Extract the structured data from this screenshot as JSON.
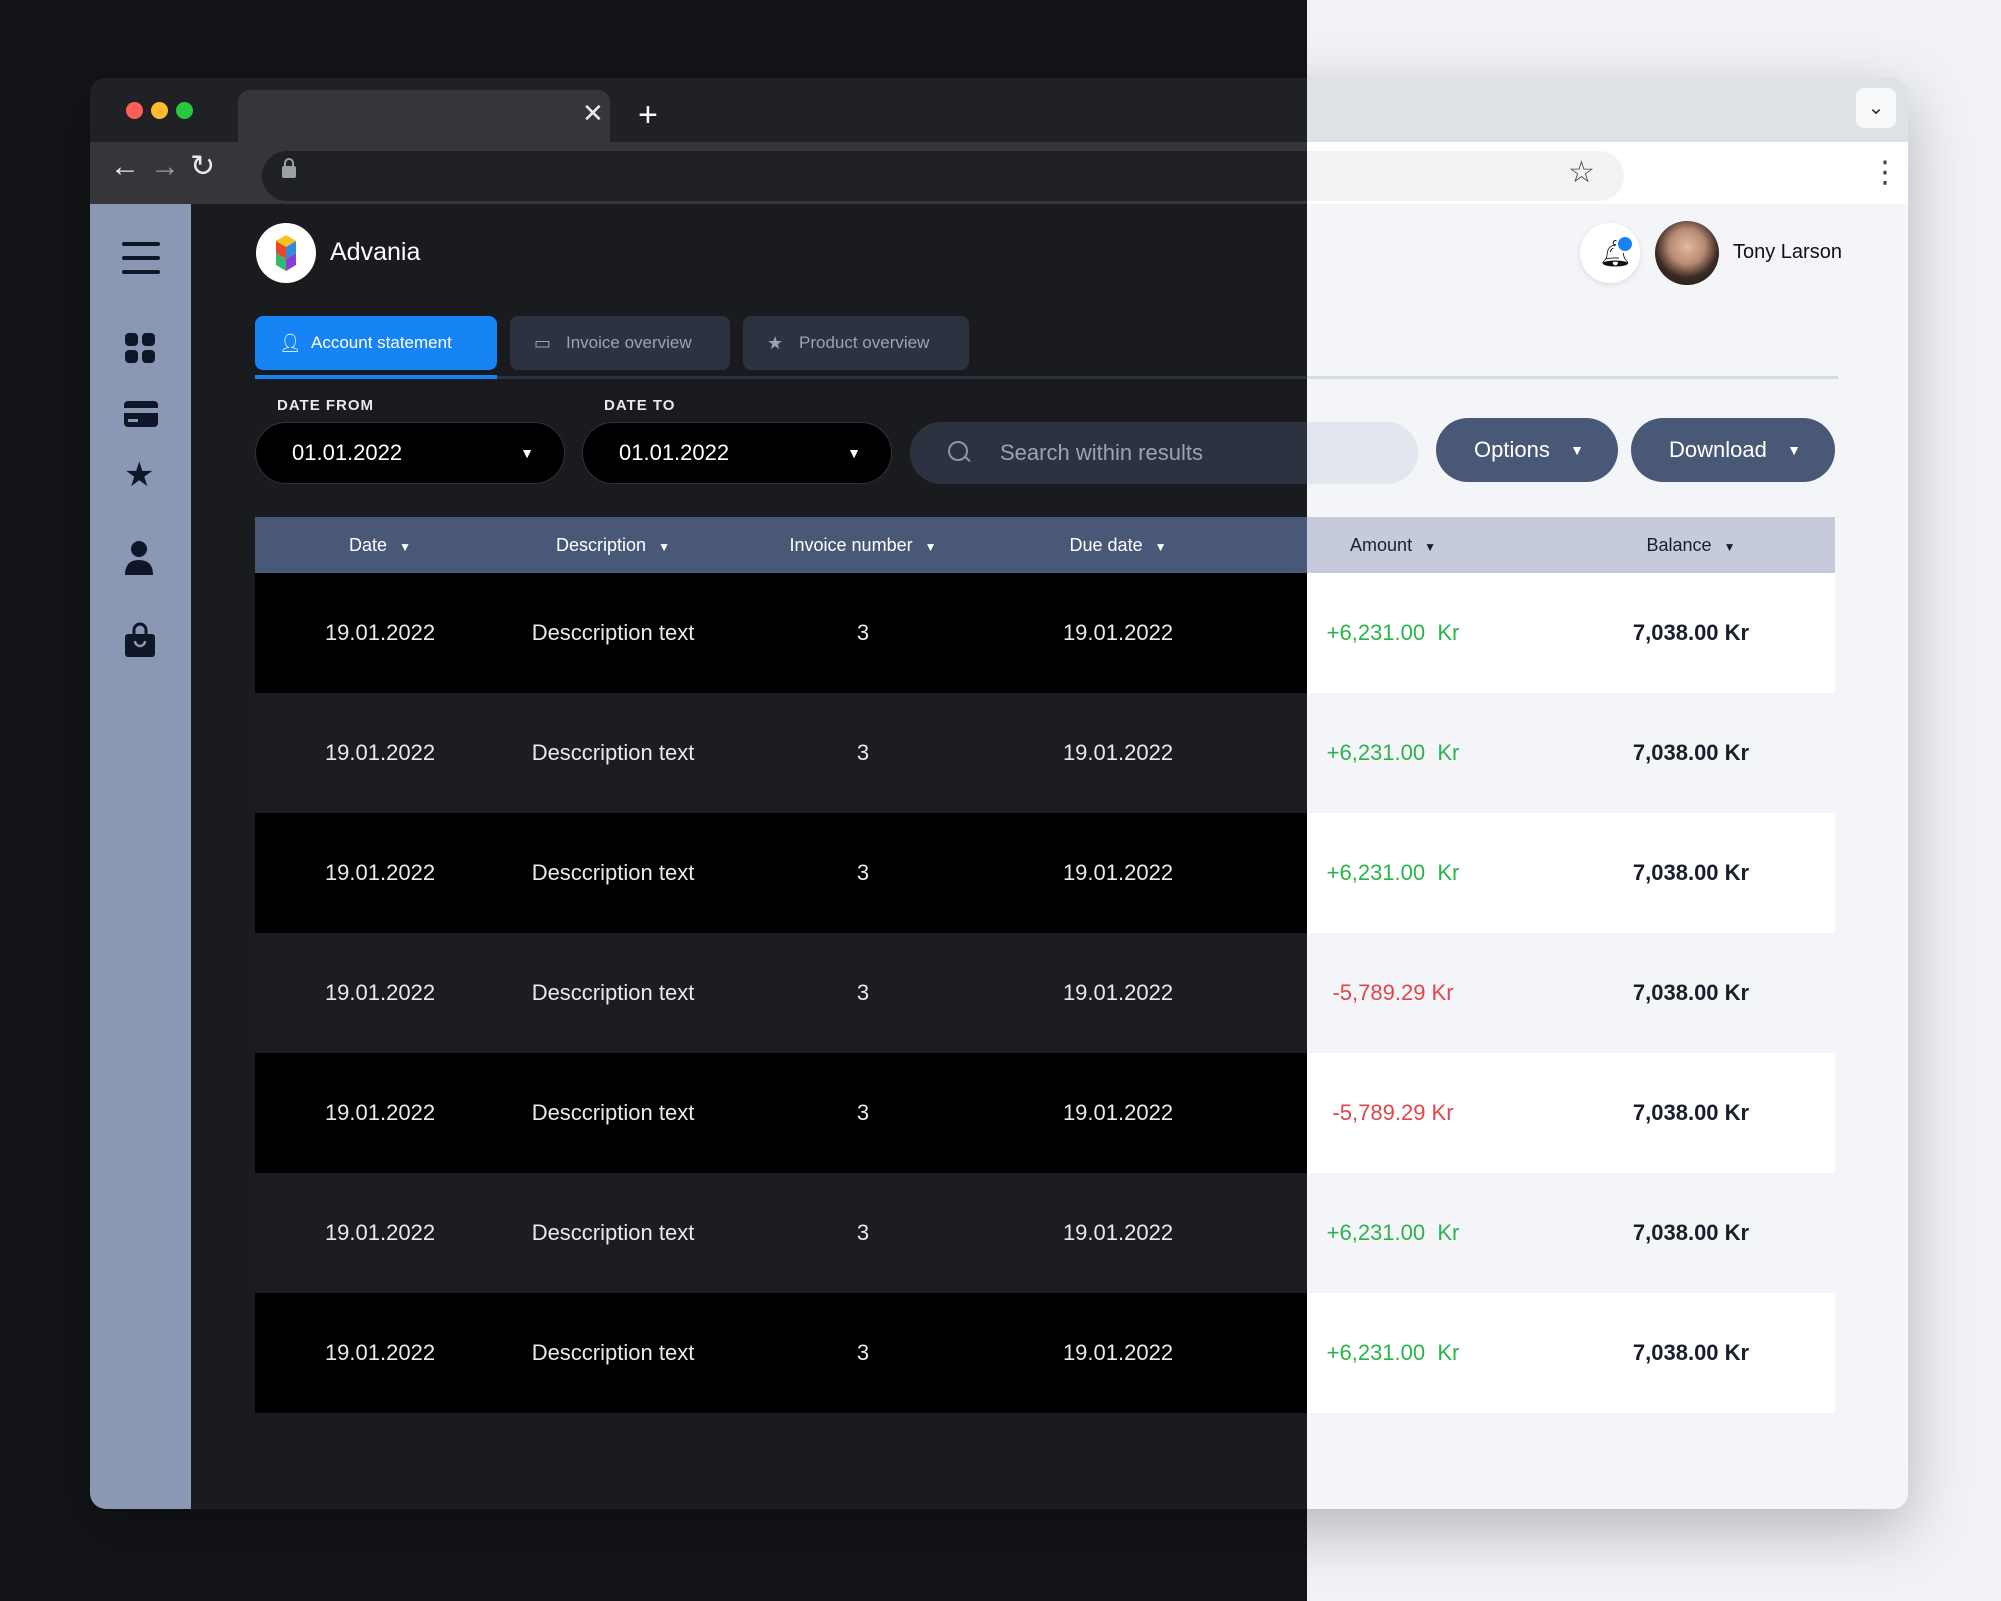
{
  "brand": {
    "name": "Advania"
  },
  "user": {
    "name": "Tony Larson"
  },
  "tabs": [
    {
      "label": "Account statement",
      "icon": "user-icon"
    },
    {
      "label": "Invoice overview",
      "icon": "card-icon"
    },
    {
      "label": "Product overview",
      "icon": "star-icon"
    }
  ],
  "filters": {
    "date_from_label": "DATE FROM",
    "date_from_value": "01.01.2022",
    "date_to_label": "DATE TO",
    "date_to_value": "01.01.2022",
    "search_placeholder": "Search within results",
    "options_label": "Options",
    "download_label": "Download"
  },
  "table": {
    "columns": [
      "Date",
      "Description",
      "Invoice number",
      "Due date",
      "Amount",
      "Balance"
    ],
    "rows": [
      {
        "date": "19.01.2022",
        "description": "Desccription text",
        "invoice": "3",
        "due": "19.01.2022",
        "amount": "+6,231.00  Kr",
        "sign": "pos",
        "balance": "7,038.00 Kr"
      },
      {
        "date": "19.01.2022",
        "description": "Desccription text",
        "invoice": "3",
        "due": "19.01.2022",
        "amount": "+6,231.00  Kr",
        "sign": "pos",
        "balance": "7,038.00 Kr"
      },
      {
        "date": "19.01.2022",
        "description": "Desccription text",
        "invoice": "3",
        "due": "19.01.2022",
        "amount": "+6,231.00  Kr",
        "sign": "pos",
        "balance": "7,038.00 Kr"
      },
      {
        "date": "19.01.2022",
        "description": "Desccription text",
        "invoice": "3",
        "due": "19.01.2022",
        "amount": "-5,789.29 Kr",
        "sign": "neg",
        "balance": "7,038.00 Kr"
      },
      {
        "date": "19.01.2022",
        "description": "Desccription text",
        "invoice": "3",
        "due": "19.01.2022",
        "amount": "-5,789.29 Kr",
        "sign": "neg",
        "balance": "7,038.00 Kr"
      },
      {
        "date": "19.01.2022",
        "description": "Desccription text",
        "invoice": "3",
        "due": "19.01.2022",
        "amount": "+6,231.00  Kr",
        "sign": "pos",
        "balance": "7,038.00 Kr"
      },
      {
        "date": "19.01.2022",
        "description": "Desccription text",
        "invoice": "3",
        "due": "19.01.2022",
        "amount": "+6,231.00  Kr",
        "sign": "pos",
        "balance": "7,038.00 Kr"
      }
    ]
  },
  "sidebar": {
    "icons": [
      "menu-icon",
      "dashboard-icon",
      "card-icon",
      "star-icon",
      "user-icon",
      "bag-icon"
    ]
  },
  "colors": {
    "accent": "#1684f5",
    "positive": "#2db34a",
    "negative": "#e0454b",
    "sidebar": "#8b98b3"
  }
}
